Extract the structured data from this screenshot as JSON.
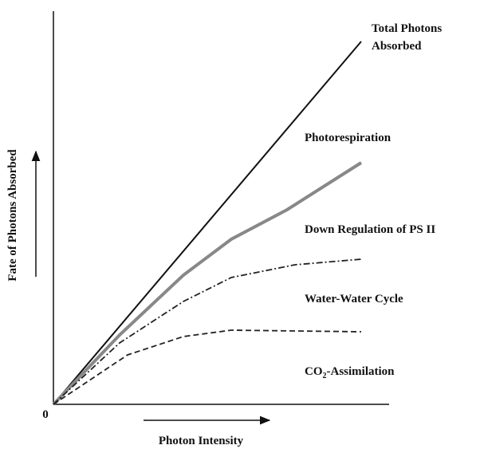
{
  "y_axis": {
    "label": "Fate of Photons Absorbed"
  },
  "x_axis": {
    "label": "Photon Intensity",
    "origin": "0"
  },
  "curves": [
    {
      "label_lines": [
        "Total Photons",
        "Absorbed"
      ]
    },
    {
      "label": "Photorespiration"
    },
    {
      "label": "Down Regulation of PS II"
    },
    {
      "label": "Water-Water Cycle"
    },
    {
      "label_parts": {
        "main": "CO",
        "sub": "2",
        "rest": "-Assimilation"
      }
    }
  ]
}
